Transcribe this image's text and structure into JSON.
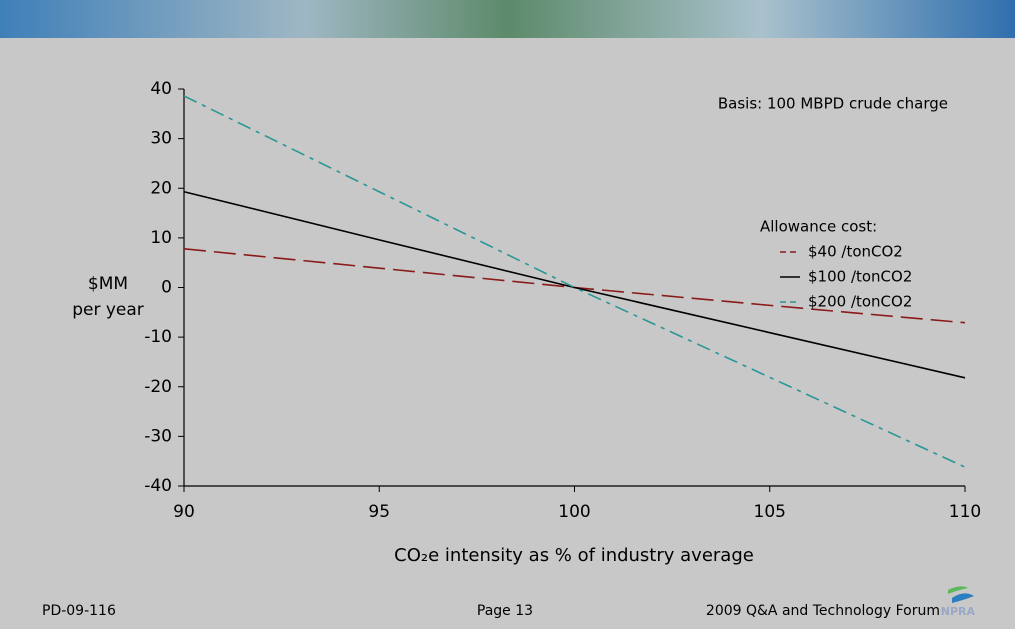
{
  "chart_data": {
    "type": "line",
    "annotation": "Basis: 100 MBPD crude charge",
    "legend_title": "Allowance cost:",
    "ylabel": [
      "$MM",
      "per year"
    ],
    "xlabel": "CO₂e intensity as % of industry average",
    "x": [
      90,
      95,
      100,
      105,
      110
    ],
    "series": [
      {
        "name": "$40 /tonCO2",
        "color": "#8b1a1a",
        "dash": "dashed",
        "values": [
          7.8,
          3.9,
          0,
          -3.6,
          -7.1
        ]
      },
      {
        "name": "$100 /tonCO2",
        "color": "#000000",
        "dash": "solid",
        "values": [
          19.3,
          9.6,
          0,
          -9.1,
          -18.2
        ]
      },
      {
        "name": "$200 /tonCO2",
        "color": "#2a9696",
        "dash": "dashdot",
        "values": [
          38.6,
          19.3,
          0,
          -18.1,
          -36.2
        ]
      }
    ],
    "xlim": [
      90,
      110
    ],
    "xticks": [
      90,
      95,
      100,
      105,
      110
    ],
    "ylim": [
      -40,
      40
    ],
    "yticks": [
      -40,
      -30,
      -20,
      -10,
      0,
      10,
      20,
      30,
      40
    ],
    "grid": false,
    "legend": "right"
  },
  "footer": {
    "left": "PD-09-116",
    "center": "Page 13",
    "right": "2009 Q&A and Technology Forum",
    "logo": "NPRA"
  }
}
